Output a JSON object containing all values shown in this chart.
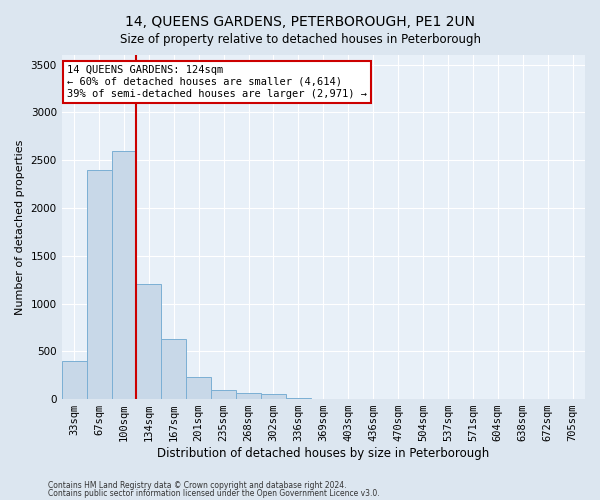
{
  "title": "14, QUEENS GARDENS, PETERBOROUGH, PE1 2UN",
  "subtitle": "Size of property relative to detached houses in Peterborough",
  "xlabel": "Distribution of detached houses by size in Peterborough",
  "ylabel": "Number of detached properties",
  "footnote1": "Contains HM Land Registry data © Crown copyright and database right 2024.",
  "footnote2": "Contains public sector information licensed under the Open Government Licence v3.0.",
  "categories": [
    "33sqm",
    "67sqm",
    "100sqm",
    "134sqm",
    "167sqm",
    "201sqm",
    "235sqm",
    "268sqm",
    "302sqm",
    "336sqm",
    "369sqm",
    "403sqm",
    "436sqm",
    "470sqm",
    "504sqm",
    "537sqm",
    "571sqm",
    "604sqm",
    "638sqm",
    "672sqm",
    "705sqm"
  ],
  "values": [
    400,
    2400,
    2600,
    1200,
    630,
    230,
    100,
    60,
    55,
    10,
    5,
    2,
    2,
    1,
    1,
    0,
    0,
    0,
    0,
    0,
    0
  ],
  "bar_color": "#c8d8e8",
  "bar_edge_color": "#7bafd4",
  "vline_x": 2.5,
  "vline_color": "#cc0000",
  "annotation_text": "14 QUEENS GARDENS: 124sqm\n← 60% of detached houses are smaller (4,614)\n39% of semi-detached houses are larger (2,971) →",
  "annotation_box_color": "#ffffff",
  "annotation_box_edge": "#cc0000",
  "ylim": [
    0,
    3600
  ],
  "yticks": [
    0,
    500,
    1000,
    1500,
    2000,
    2500,
    3000,
    3500
  ],
  "bg_color": "#dce6f0",
  "plot_bg_color": "#e8f0f8",
  "title_fontsize": 10,
  "subtitle_fontsize": 8.5,
  "axis_label_fontsize": 8,
  "tick_fontsize": 7.5,
  "annot_fontsize": 7.5
}
